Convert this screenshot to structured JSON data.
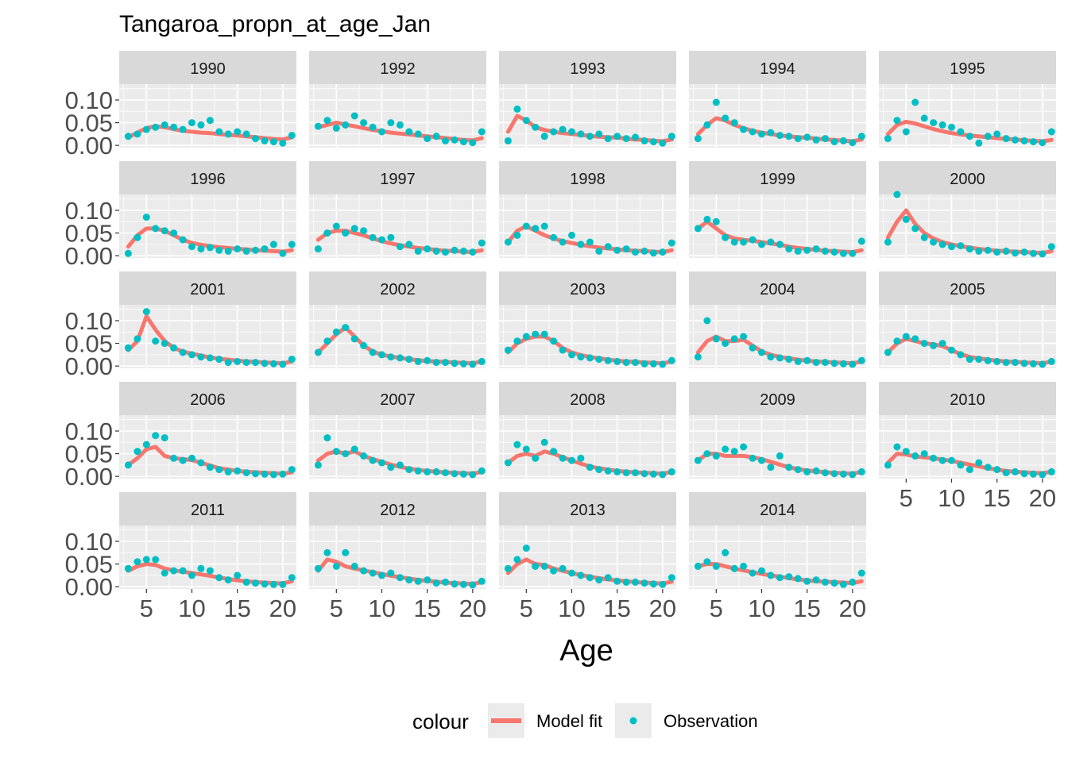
{
  "chart_data": {
    "type": "scatter",
    "title": "Tangaroa_propn_at_age_Jan",
    "xlabel": "Age",
    "ylabel": "",
    "xlim": [
      2.0,
      21.5
    ],
    "ylim": [
      -0.005,
      0.135
    ],
    "x_ticks": [
      5,
      10,
      15,
      20
    ],
    "x_tick_labels": [
      "5",
      "10",
      "15",
      "20"
    ],
    "y_ticks": [
      0.0,
      0.05,
      0.1
    ],
    "y_tick_labels": [
      "0.00",
      "0.05",
      "0.10"
    ],
    "grid": true,
    "legend": {
      "title": "colour",
      "position": "bottom",
      "entries": [
        {
          "label": "Model fit",
          "kind": "line",
          "color": "#F8766D"
        },
        {
          "label": "Observation",
          "kind": "point",
          "color": "#00BFC4"
        }
      ]
    },
    "colors": {
      "model": "#F8766D",
      "observation": "#00BFC4",
      "panel_bg": "#EBEBEB",
      "strip_bg": "#D9D9D9"
    },
    "ages": [
      3,
      4,
      5,
      6,
      7,
      8,
      9,
      10,
      11,
      12,
      13,
      14,
      15,
      16,
      17,
      18,
      19,
      20,
      21
    ],
    "panels": [
      {
        "year": "1990",
        "model": [
          0.018,
          0.028,
          0.038,
          0.042,
          0.04,
          0.036,
          0.032,
          0.03,
          0.028,
          0.027,
          0.025,
          0.023,
          0.022,
          0.02,
          0.018,
          0.016,
          0.014,
          0.013,
          0.018
        ],
        "obs": [
          0.02,
          0.025,
          0.035,
          0.04,
          0.045,
          0.04,
          0.035,
          0.05,
          0.045,
          0.055,
          0.03,
          0.025,
          0.03,
          0.025,
          0.015,
          0.01,
          0.008,
          0.005,
          0.022
        ]
      },
      {
        "year": "1992",
        "model": [
          0.04,
          0.045,
          0.05,
          0.046,
          0.042,
          0.038,
          0.034,
          0.031,
          0.028,
          0.026,
          0.024,
          0.022,
          0.02,
          0.018,
          0.016,
          0.014,
          0.012,
          0.011,
          0.016
        ],
        "obs": [
          0.042,
          0.055,
          0.038,
          0.045,
          0.065,
          0.05,
          0.04,
          0.03,
          0.05,
          0.045,
          0.03,
          0.025,
          0.015,
          0.02,
          0.01,
          0.012,
          0.008,
          0.006,
          0.03
        ]
      },
      {
        "year": "1993",
        "model": [
          0.03,
          0.065,
          0.055,
          0.04,
          0.034,
          0.03,
          0.027,
          0.025,
          0.023,
          0.021,
          0.019,
          0.018,
          0.017,
          0.015,
          0.013,
          0.012,
          0.01,
          0.009,
          0.013
        ],
        "obs": [
          0.01,
          0.08,
          0.055,
          0.04,
          0.02,
          0.03,
          0.035,
          0.03,
          0.025,
          0.02,
          0.025,
          0.015,
          0.02,
          0.015,
          0.018,
          0.01,
          0.008,
          0.005,
          0.02
        ]
      },
      {
        "year": "1994",
        "model": [
          0.025,
          0.045,
          0.06,
          0.055,
          0.045,
          0.038,
          0.032,
          0.028,
          0.025,
          0.022,
          0.02,
          0.018,
          0.017,
          0.015,
          0.013,
          0.012,
          0.01,
          0.009,
          0.013
        ],
        "obs": [
          0.015,
          0.045,
          0.095,
          0.06,
          0.05,
          0.035,
          0.03,
          0.025,
          0.028,
          0.022,
          0.02,
          0.015,
          0.018,
          0.012,
          0.015,
          0.008,
          0.01,
          0.006,
          0.02
        ]
      },
      {
        "year": "1995",
        "model": [
          0.025,
          0.045,
          0.052,
          0.048,
          0.042,
          0.036,
          0.031,
          0.027,
          0.024,
          0.022,
          0.02,
          0.018,
          0.016,
          0.014,
          0.013,
          0.011,
          0.01,
          0.009,
          0.012
        ],
        "obs": [
          0.015,
          0.055,
          0.03,
          0.095,
          0.06,
          0.05,
          0.045,
          0.04,
          0.03,
          0.02,
          0.005,
          0.02,
          0.025,
          0.015,
          0.012,
          0.01,
          0.008,
          0.006,
          0.03
        ]
      },
      {
        "year": "1996",
        "model": [
          0.02,
          0.045,
          0.06,
          0.06,
          0.055,
          0.045,
          0.035,
          0.028,
          0.024,
          0.021,
          0.019,
          0.017,
          0.015,
          0.014,
          0.012,
          0.011,
          0.01,
          0.009,
          0.012
        ],
        "obs": [
          0.005,
          0.04,
          0.085,
          0.06,
          0.055,
          0.05,
          0.035,
          0.02,
          0.015,
          0.018,
          0.012,
          0.01,
          0.015,
          0.01,
          0.012,
          0.015,
          0.025,
          0.005,
          0.025
        ]
      },
      {
        "year": "1997",
        "model": [
          0.035,
          0.05,
          0.055,
          0.055,
          0.05,
          0.045,
          0.038,
          0.032,
          0.027,
          0.023,
          0.02,
          0.017,
          0.015,
          0.013,
          0.011,
          0.01,
          0.009,
          0.008,
          0.012
        ],
        "obs": [
          0.015,
          0.05,
          0.065,
          0.05,
          0.06,
          0.055,
          0.04,
          0.035,
          0.04,
          0.02,
          0.025,
          0.01,
          0.015,
          0.01,
          0.008,
          0.012,
          0.01,
          0.008,
          0.028
        ]
      },
      {
        "year": "1998",
        "model": [
          0.03,
          0.055,
          0.065,
          0.055,
          0.045,
          0.038,
          0.032,
          0.028,
          0.024,
          0.021,
          0.018,
          0.016,
          0.014,
          0.012,
          0.011,
          0.01,
          0.009,
          0.008,
          0.012
        ],
        "obs": [
          0.03,
          0.045,
          0.065,
          0.06,
          0.065,
          0.04,
          0.03,
          0.045,
          0.025,
          0.03,
          0.01,
          0.02,
          0.012,
          0.015,
          0.008,
          0.01,
          0.006,
          0.008,
          0.028
        ]
      },
      {
        "year": "1999",
        "model": [
          0.06,
          0.075,
          0.06,
          0.045,
          0.038,
          0.035,
          0.033,
          0.03,
          0.027,
          0.024,
          0.02,
          0.017,
          0.015,
          0.013,
          0.011,
          0.01,
          0.009,
          0.008,
          0.012
        ],
        "obs": [
          0.06,
          0.08,
          0.075,
          0.04,
          0.03,
          0.03,
          0.035,
          0.025,
          0.03,
          0.025,
          0.015,
          0.01,
          0.012,
          0.015,
          0.01,
          0.008,
          0.005,
          0.005,
          0.032
        ]
      },
      {
        "year": "2000",
        "model": [
          0.04,
          0.075,
          0.1,
          0.07,
          0.05,
          0.038,
          0.03,
          0.025,
          0.021,
          0.018,
          0.015,
          0.013,
          0.011,
          0.01,
          0.009,
          0.008,
          0.007,
          0.006,
          0.01
        ],
        "obs": [
          0.03,
          0.135,
          0.08,
          0.06,
          0.04,
          0.03,
          0.025,
          0.02,
          0.022,
          0.015,
          0.01,
          0.012,
          0.008,
          0.01,
          0.006,
          0.008,
          0.005,
          0.004,
          0.02
        ]
      },
      {
        "year": "2001",
        "model": [
          0.035,
          0.055,
          0.11,
          0.08,
          0.055,
          0.04,
          0.032,
          0.027,
          0.023,
          0.019,
          0.016,
          0.014,
          0.012,
          0.01,
          0.009,
          0.008,
          0.007,
          0.006,
          0.01
        ],
        "obs": [
          0.04,
          0.06,
          0.12,
          0.055,
          0.05,
          0.04,
          0.03,
          0.025,
          0.02,
          0.018,
          0.015,
          0.008,
          0.01,
          0.008,
          0.008,
          0.006,
          0.005,
          0.004,
          0.015
        ]
      },
      {
        "year": "2002",
        "model": [
          0.03,
          0.05,
          0.07,
          0.085,
          0.065,
          0.045,
          0.032,
          0.025,
          0.021,
          0.018,
          0.015,
          0.013,
          0.011,
          0.01,
          0.009,
          0.008,
          0.007,
          0.006,
          0.01
        ],
        "obs": [
          0.03,
          0.055,
          0.075,
          0.085,
          0.06,
          0.045,
          0.03,
          0.025,
          0.02,
          0.018,
          0.015,
          0.01,
          0.012,
          0.008,
          0.008,
          0.006,
          0.005,
          0.004,
          0.01
        ]
      },
      {
        "year": "2003",
        "model": [
          0.03,
          0.05,
          0.06,
          0.065,
          0.065,
          0.055,
          0.04,
          0.03,
          0.024,
          0.02,
          0.017,
          0.014,
          0.012,
          0.01,
          0.009,
          0.008,
          0.007,
          0.006,
          0.01
        ],
        "obs": [
          0.035,
          0.055,
          0.065,
          0.07,
          0.07,
          0.055,
          0.035,
          0.025,
          0.02,
          0.018,
          0.015,
          0.012,
          0.01,
          0.008,
          0.008,
          0.005,
          0.005,
          0.004,
          0.012
        ]
      },
      {
        "year": "2004",
        "model": [
          0.03,
          0.055,
          0.065,
          0.055,
          0.055,
          0.058,
          0.045,
          0.032,
          0.025,
          0.02,
          0.017,
          0.014,
          0.012,
          0.01,
          0.009,
          0.008,
          0.007,
          0.006,
          0.01
        ],
        "obs": [
          0.02,
          0.1,
          0.06,
          0.05,
          0.06,
          0.065,
          0.04,
          0.03,
          0.02,
          0.018,
          0.015,
          0.01,
          0.012,
          0.008,
          0.008,
          0.006,
          0.005,
          0.004,
          0.012
        ]
      },
      {
        "year": "2005",
        "model": [
          0.03,
          0.05,
          0.06,
          0.055,
          0.05,
          0.048,
          0.044,
          0.035,
          0.026,
          0.02,
          0.017,
          0.014,
          0.012,
          0.01,
          0.009,
          0.008,
          0.007,
          0.006,
          0.01
        ],
        "obs": [
          0.03,
          0.055,
          0.065,
          0.06,
          0.05,
          0.045,
          0.05,
          0.035,
          0.025,
          0.015,
          0.015,
          0.012,
          0.01,
          0.008,
          0.008,
          0.006,
          0.005,
          0.004,
          0.01
        ]
      },
      {
        "year": "2006",
        "model": [
          0.025,
          0.04,
          0.06,
          0.065,
          0.045,
          0.04,
          0.038,
          0.036,
          0.03,
          0.024,
          0.018,
          0.015,
          0.012,
          0.01,
          0.009,
          0.008,
          0.007,
          0.006,
          0.009
        ],
        "obs": [
          0.025,
          0.055,
          0.07,
          0.09,
          0.085,
          0.04,
          0.035,
          0.04,
          0.03,
          0.02,
          0.015,
          0.01,
          0.012,
          0.008,
          0.006,
          0.005,
          0.004,
          0.005,
          0.015
        ]
      },
      {
        "year": "2007",
        "model": [
          0.035,
          0.05,
          0.055,
          0.05,
          0.055,
          0.045,
          0.038,
          0.032,
          0.026,
          0.021,
          0.017,
          0.014,
          0.012,
          0.01,
          0.009,
          0.008,
          0.007,
          0.006,
          0.01
        ],
        "obs": [
          0.025,
          0.085,
          0.055,
          0.05,
          0.06,
          0.045,
          0.035,
          0.03,
          0.02,
          0.025,
          0.015,
          0.012,
          0.01,
          0.01,
          0.008,
          0.006,
          0.005,
          0.004,
          0.012
        ]
      },
      {
        "year": "2008",
        "model": [
          0.03,
          0.045,
          0.05,
          0.045,
          0.055,
          0.05,
          0.042,
          0.035,
          0.028,
          0.022,
          0.018,
          0.015,
          0.012,
          0.01,
          0.009,
          0.008,
          0.007,
          0.006,
          0.01
        ],
        "obs": [
          0.03,
          0.07,
          0.06,
          0.04,
          0.075,
          0.055,
          0.04,
          0.035,
          0.04,
          0.02,
          0.015,
          0.012,
          0.01,
          0.008,
          0.008,
          0.006,
          0.005,
          0.004,
          0.01
        ]
      },
      {
        "year": "2009",
        "model": [
          0.035,
          0.05,
          0.05,
          0.045,
          0.045,
          0.045,
          0.042,
          0.038,
          0.032,
          0.026,
          0.02,
          0.016,
          0.013,
          0.011,
          0.009,
          0.008,
          0.007,
          0.006,
          0.01
        ],
        "obs": [
          0.035,
          0.05,
          0.045,
          0.06,
          0.055,
          0.065,
          0.04,
          0.035,
          0.02,
          0.045,
          0.02,
          0.015,
          0.01,
          0.012,
          0.008,
          0.006,
          0.005,
          0.004,
          0.01
        ]
      },
      {
        "year": "2010",
        "model": [
          0.03,
          0.05,
          0.048,
          0.044,
          0.042,
          0.04,
          0.037,
          0.034,
          0.03,
          0.026,
          0.022,
          0.018,
          0.015,
          0.012,
          0.01,
          0.009,
          0.008,
          0.007,
          0.01
        ],
        "obs": [
          0.025,
          0.065,
          0.055,
          0.045,
          0.05,
          0.04,
          0.035,
          0.035,
          0.025,
          0.015,
          0.03,
          0.02,
          0.015,
          0.008,
          0.01,
          0.006,
          0.005,
          0.004,
          0.01
        ]
      },
      {
        "year": "2011",
        "model": [
          0.035,
          0.045,
          0.05,
          0.048,
          0.04,
          0.036,
          0.033,
          0.03,
          0.027,
          0.024,
          0.02,
          0.017,
          0.014,
          0.012,
          0.01,
          0.009,
          0.008,
          0.007,
          0.012
        ],
        "obs": [
          0.04,
          0.055,
          0.06,
          0.06,
          0.03,
          0.035,
          0.035,
          0.025,
          0.04,
          0.035,
          0.02,
          0.015,
          0.025,
          0.01,
          0.008,
          0.006,
          0.005,
          0.005,
          0.02
        ]
      },
      {
        "year": "2012",
        "model": [
          0.035,
          0.06,
          0.055,
          0.045,
          0.04,
          0.036,
          0.032,
          0.028,
          0.024,
          0.021,
          0.018,
          0.015,
          0.013,
          0.011,
          0.009,
          0.008,
          0.007,
          0.006,
          0.01
        ],
        "obs": [
          0.04,
          0.075,
          0.045,
          0.075,
          0.045,
          0.035,
          0.03,
          0.025,
          0.03,
          0.02,
          0.015,
          0.012,
          0.015,
          0.008,
          0.01,
          0.006,
          0.005,
          0.004,
          0.012
        ]
      },
      {
        "year": "2013",
        "model": [
          0.03,
          0.05,
          0.06,
          0.05,
          0.048,
          0.04,
          0.035,
          0.03,
          0.026,
          0.022,
          0.019,
          0.016,
          0.014,
          0.012,
          0.01,
          0.009,
          0.008,
          0.007,
          0.011
        ],
        "obs": [
          0.04,
          0.06,
          0.085,
          0.045,
          0.045,
          0.035,
          0.04,
          0.03,
          0.025,
          0.02,
          0.015,
          0.02,
          0.012,
          0.01,
          0.01,
          0.008,
          0.006,
          0.005,
          0.02
        ]
      },
      {
        "year": "2014",
        "model": [
          0.045,
          0.05,
          0.05,
          0.045,
          0.04,
          0.036,
          0.032,
          0.028,
          0.025,
          0.022,
          0.019,
          0.016,
          0.014,
          0.012,
          0.011,
          0.01,
          0.009,
          0.008,
          0.012
        ],
        "obs": [
          0.045,
          0.055,
          0.045,
          0.075,
          0.04,
          0.045,
          0.03,
          0.035,
          0.025,
          0.02,
          0.022,
          0.018,
          0.012,
          0.015,
          0.01,
          0.008,
          0.005,
          0.01,
          0.03
        ]
      }
    ]
  }
}
